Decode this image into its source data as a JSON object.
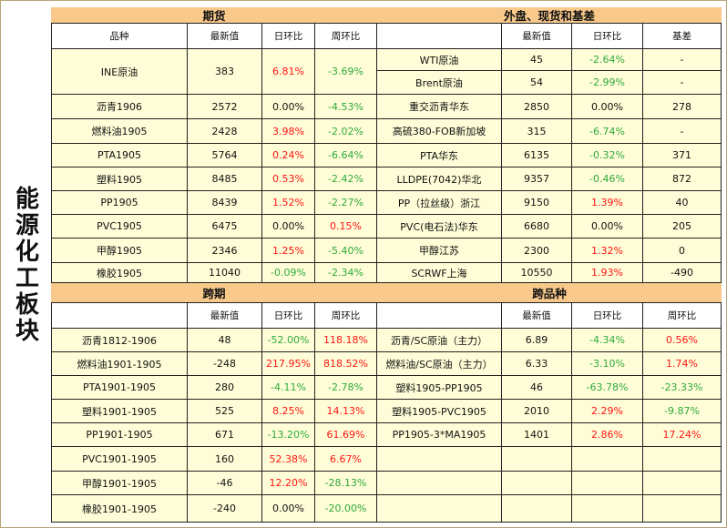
{
  "side_title": "能源化工板块",
  "futures": {
    "title": "期货",
    "headers": [
      "品种",
      "最新值",
      "日环比",
      "周环比"
    ],
    "rows": [
      [
        "INE原油",
        "383",
        "6.81%",
        "-3.69%"
      ],
      [
        "沥青1906",
        "2572",
        "0.00%",
        "-4.53%"
      ],
      [
        "燃料油1905",
        "2428",
        "3.98%",
        "-2.02%"
      ],
      [
        "PTA1905",
        "5764",
        "0.24%",
        "-6.64%"
      ],
      [
        "塑料1905",
        "8485",
        "0.53%",
        "-2.42%"
      ],
      [
        "PP1905",
        "8439",
        "1.52%",
        "-2.27%"
      ],
      [
        "PVC1905",
        "6475",
        "0.00%",
        "0.15%"
      ],
      [
        "甲醇1905",
        "2346",
        "1.25%",
        "-5.40%"
      ],
      [
        "橡胶1905",
        "11040",
        "-0.09%",
        "-2.34%"
      ]
    ]
  },
  "spot": {
    "title": "外盘、现货和基差",
    "headers": [
      "",
      "最新值",
      "日环比",
      "基差"
    ],
    "rows": [
      [
        "WTI原油",
        "45",
        "-2.64%",
        "-"
      ],
      [
        "Brent原油",
        "54",
        "-2.99%",
        "-"
      ],
      [
        "重交沥青华东",
        "2850",
        "0.00%",
        "278"
      ],
      [
        "高硫380-FOB新加坡",
        "315",
        "-6.74%",
        "-"
      ],
      [
        "PTA华东",
        "6135",
        "-0.32%",
        "371"
      ],
      [
        "LLDPE(7042)华北",
        "9357",
        "-0.46%",
        "872"
      ],
      [
        "PP（拉丝级）浙江",
        "9150",
        "1.39%",
        "40"
      ],
      [
        "PVC(电石法)华东",
        "6680",
        "0.00%",
        "205"
      ],
      [
        "甲醇江苏",
        "2300",
        "1.32%",
        "0"
      ],
      [
        "SCRWF上海",
        "10550",
        "1.93%",
        "-490"
      ]
    ]
  },
  "spread": {
    "title": "跨期",
    "headers": [
      "",
      "最新值",
      "日环比",
      "周环比"
    ],
    "rows": [
      [
        "沥青1812-1906",
        "48",
        "-52.00%",
        "118.18%"
      ],
      [
        "燃料油1901-1905",
        "-248",
        "217.95%",
        "818.52%"
      ],
      [
        "PTA1901-1905",
        "280",
        "-4.11%",
        "-2.78%"
      ],
      [
        "塑料1901-1905",
        "525",
        "8.25%",
        "14.13%"
      ],
      [
        "PP1901-1905",
        "671",
        "-13.20%",
        "61.69%"
      ],
      [
        "PVC1901-1905",
        "160",
        "52.38%",
        "6.67%"
      ],
      [
        "甲醇1901-1905",
        "-46",
        "12.20%",
        "-28.13%"
      ],
      [
        "橡胶1901-1905",
        "-240",
        "0.00%",
        "-20.00%"
      ]
    ]
  },
  "cross": {
    "title": "跨品种",
    "headers": [
      "",
      "最新值",
      "日环比",
      "周环比"
    ],
    "rows": [
      [
        "沥青/SC原油（主力）",
        "6.89",
        "-4.34%",
        "0.56%"
      ],
      [
        "燃料油/SC原油（主力）",
        "6.33",
        "-3.10%",
        "1.74%"
      ],
      [
        "塑料1905-PP1905",
        "46",
        "-63.78%",
        "-23.33%"
      ],
      [
        "塑料1905-PVC1905",
        "2010",
        "2.29%",
        "-9.87%"
      ],
      [
        "PP1905-3*MA1905",
        "1401",
        "2.86%",
        "17.24%"
      ],
      [
        "",
        "",
        "",
        ""
      ],
      [
        "",
        "",
        "",
        ""
      ],
      [
        "",
        "",
        "",
        ""
      ]
    ]
  },
  "colors": {
    "positive": "#ff1414",
    "negative": "#2eaa3c",
    "title_bg": "#f8c98b",
    "cell_bg": "#fffdd7"
  }
}
